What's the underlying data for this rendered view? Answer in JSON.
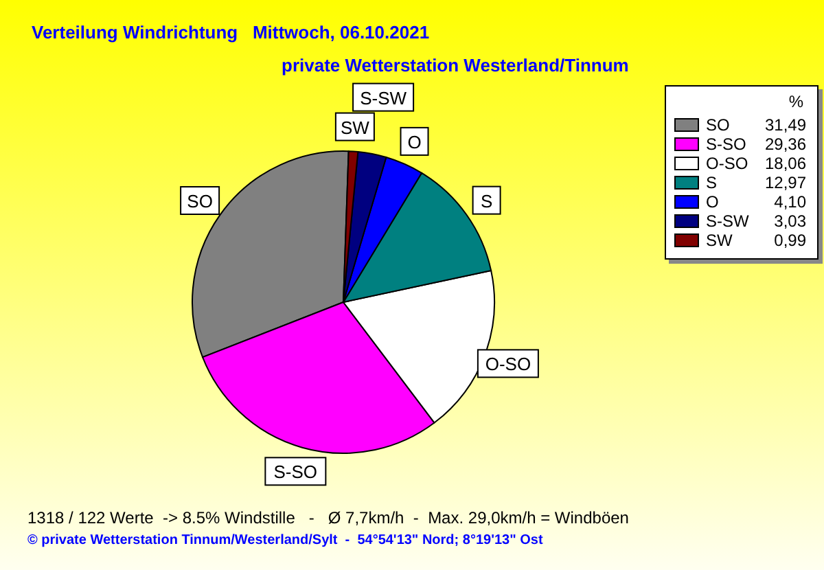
{
  "chart_data": {
    "type": "pie",
    "title": "Verteilung Windrichtung   Mittwoch, 06.10.2021",
    "subtitle": "private Wetterstation Westerland/Tinnum",
    "categories": [
      "SO",
      "S-SO",
      "O-SO",
      "S",
      "O",
      "S-SW",
      "SW"
    ],
    "values": [
      31.49,
      29.36,
      18.06,
      12.97,
      4.1,
      3.03,
      0.99
    ],
    "colors": [
      "#808080",
      "#ff00ff",
      "#ffffff",
      "#008080",
      "#0000ff",
      "#000080",
      "#800000"
    ],
    "value_labels": [
      "31,49",
      "29,36",
      "18,06",
      "12,97",
      "4,10",
      "3,03",
      "0,99"
    ],
    "legend": "right",
    "legend_title": "%",
    "annotations": [
      "1318 / 122 Werte  -> 8.5% Windstille   -   Ø 7,7km/h  -  Max. 29,0km/h = Windböen",
      "© private Wetterstation Tinnum/Westerland/Sylt  -  54°54'13\" Nord; 8°19'13\" Ost"
    ]
  }
}
